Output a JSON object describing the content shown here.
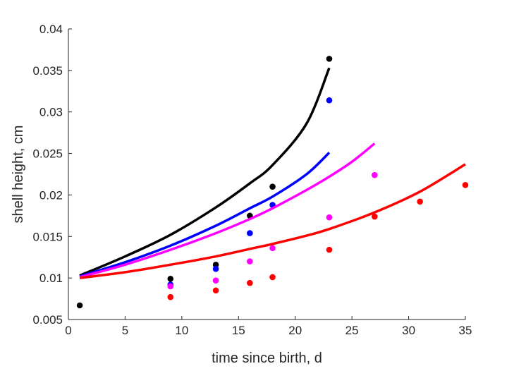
{
  "chart_data": {
    "type": "scatter",
    "title": "",
    "xlabel": "time since birth, d",
    "ylabel": "shell height, cm",
    "xlim": [
      0,
      35
    ],
    "ylim": [
      0.005,
      0.04
    ],
    "xticks": [
      0,
      5,
      10,
      15,
      20,
      25,
      30,
      35
    ],
    "yticks": [
      0.005,
      0.01,
      0.015,
      0.02,
      0.025,
      0.03,
      0.035,
      0.04
    ],
    "xtick_labels": [
      "0",
      "5",
      "10",
      "15",
      "20",
      "25",
      "30",
      "35"
    ],
    "ytick_labels": [
      "0.005",
      "0.01",
      "0.015",
      "0.02",
      "0.025",
      "0.03",
      "0.035",
      "0.04"
    ],
    "grid": false,
    "legend": "none",
    "series": [
      {
        "color": "#000000",
        "points": [
          [
            1,
            0.0067
          ],
          [
            9,
            0.0099
          ],
          [
            13,
            0.0116
          ],
          [
            16,
            0.0175
          ],
          [
            18,
            0.021
          ],
          [
            23,
            0.0364
          ]
        ],
        "curve": [
          [
            1,
            0.0103
          ],
          [
            5,
            0.0126
          ],
          [
            9,
            0.0152
          ],
          [
            13,
            0.0185
          ],
          [
            16,
            0.0214
          ],
          [
            18,
            0.0236
          ],
          [
            21,
            0.0286
          ],
          [
            23,
            0.0353
          ]
        ]
      },
      {
        "color": "#0000ff",
        "points": [
          [
            9,
            0.0092
          ],
          [
            13,
            0.0111
          ],
          [
            16,
            0.0154
          ],
          [
            18,
            0.0188
          ],
          [
            23,
            0.0314
          ]
        ],
        "curve": [
          [
            1,
            0.0102
          ],
          [
            5,
            0.0119
          ],
          [
            9,
            0.0139
          ],
          [
            13,
            0.0163
          ],
          [
            16,
            0.0184
          ],
          [
            18,
            0.0198
          ],
          [
            21,
            0.0225
          ],
          [
            23,
            0.0251
          ]
        ]
      },
      {
        "color": "#ff00ff",
        "points": [
          [
            9,
            0.009
          ],
          [
            13,
            0.0097
          ],
          [
            16,
            0.012
          ],
          [
            18,
            0.0136
          ],
          [
            23,
            0.0173
          ],
          [
            27,
            0.0224
          ]
        ],
        "curve": [
          [
            1,
            0.0101
          ],
          [
            5,
            0.0116
          ],
          [
            9,
            0.0134
          ],
          [
            13,
            0.0154
          ],
          [
            16,
            0.0171
          ],
          [
            18,
            0.0184
          ],
          [
            21,
            0.0206
          ],
          [
            23,
            0.0222
          ],
          [
            25,
            0.024
          ],
          [
            27,
            0.0262
          ]
        ]
      },
      {
        "color": "#ff0000",
        "points": [
          [
            9,
            0.0077
          ],
          [
            13,
            0.0085
          ],
          [
            16,
            0.0094
          ],
          [
            18,
            0.0101
          ],
          [
            23,
            0.0134
          ],
          [
            27,
            0.0174
          ],
          [
            31,
            0.0192
          ],
          [
            35,
            0.0212
          ]
        ],
        "curve": [
          [
            1,
            0.01
          ],
          [
            5,
            0.0107
          ],
          [
            9,
            0.0116
          ],
          [
            13,
            0.0126
          ],
          [
            16,
            0.0135
          ],
          [
            18,
            0.0141
          ],
          [
            21,
            0.0151
          ],
          [
            23,
            0.0159
          ],
          [
            27,
            0.0179
          ],
          [
            31,
            0.0204
          ],
          [
            35,
            0.0237
          ]
        ]
      }
    ]
  }
}
